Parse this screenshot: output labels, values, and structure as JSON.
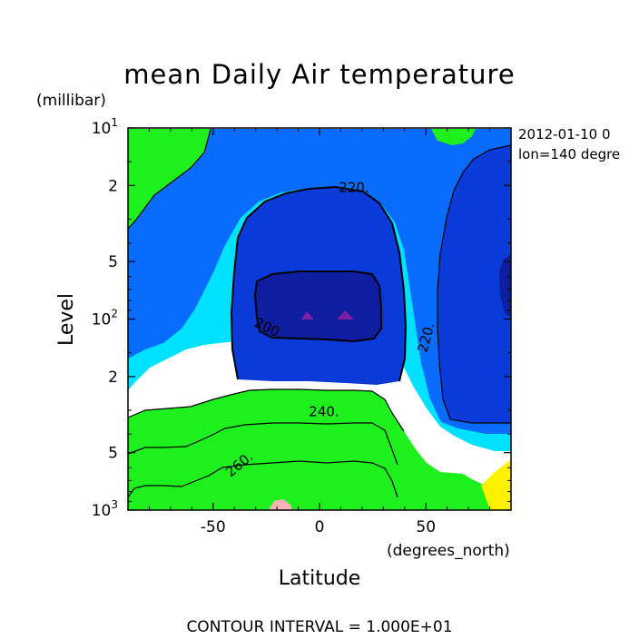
{
  "chart_data": {
    "type": "contour",
    "title": "mean Daily Air temperature",
    "date_label": "2012-01-10 0",
    "lon_label": "lon=140 degre",
    "xlabel": "Latitude",
    "xunits": "(degrees_north)",
    "ylabel": "Level",
    "yunits": "(millibar)",
    "xlim": [
      -90,
      90
    ],
    "ylim": [
      1000,
      10
    ],
    "y_scale": "log",
    "x_ticks": [
      -50,
      0,
      50
    ],
    "x_tick_labels": [
      "-50",
      "0",
      "50"
    ],
    "y_tick_labels": [
      {
        "text": "10",
        "sup": "1"
      },
      {
        "text": "2",
        "sup": ""
      },
      {
        "text": "5",
        "sup": ""
      },
      {
        "text": "10",
        "sup": "2"
      },
      {
        "text": "2",
        "sup": ""
      },
      {
        "text": "5",
        "sup": ""
      },
      {
        "text": "10",
        "sup": "3"
      }
    ],
    "y_ticks": [
      10,
      20,
      50,
      100,
      200,
      500,
      1000
    ],
    "contour_interval_label": "CONTOUR INTERVAL = 1.000E+01",
    "contour_labels": [
      "220.",
      "220.",
      "200.",
      "240.",
      "260."
    ],
    "colors": {
      "190": "#7a1fa2",
      "200": "#0f1ea0",
      "210": "#0a3ad8",
      "220": "#0a6cff",
      "230": "#00e1ff",
      "240": "#1ef01e",
      "250": "#fff200",
      "260": "#ffaa00",
      "270": "#ff6a00",
      "280": "#f53a30",
      "290": "#ffb0b8"
    }
  }
}
